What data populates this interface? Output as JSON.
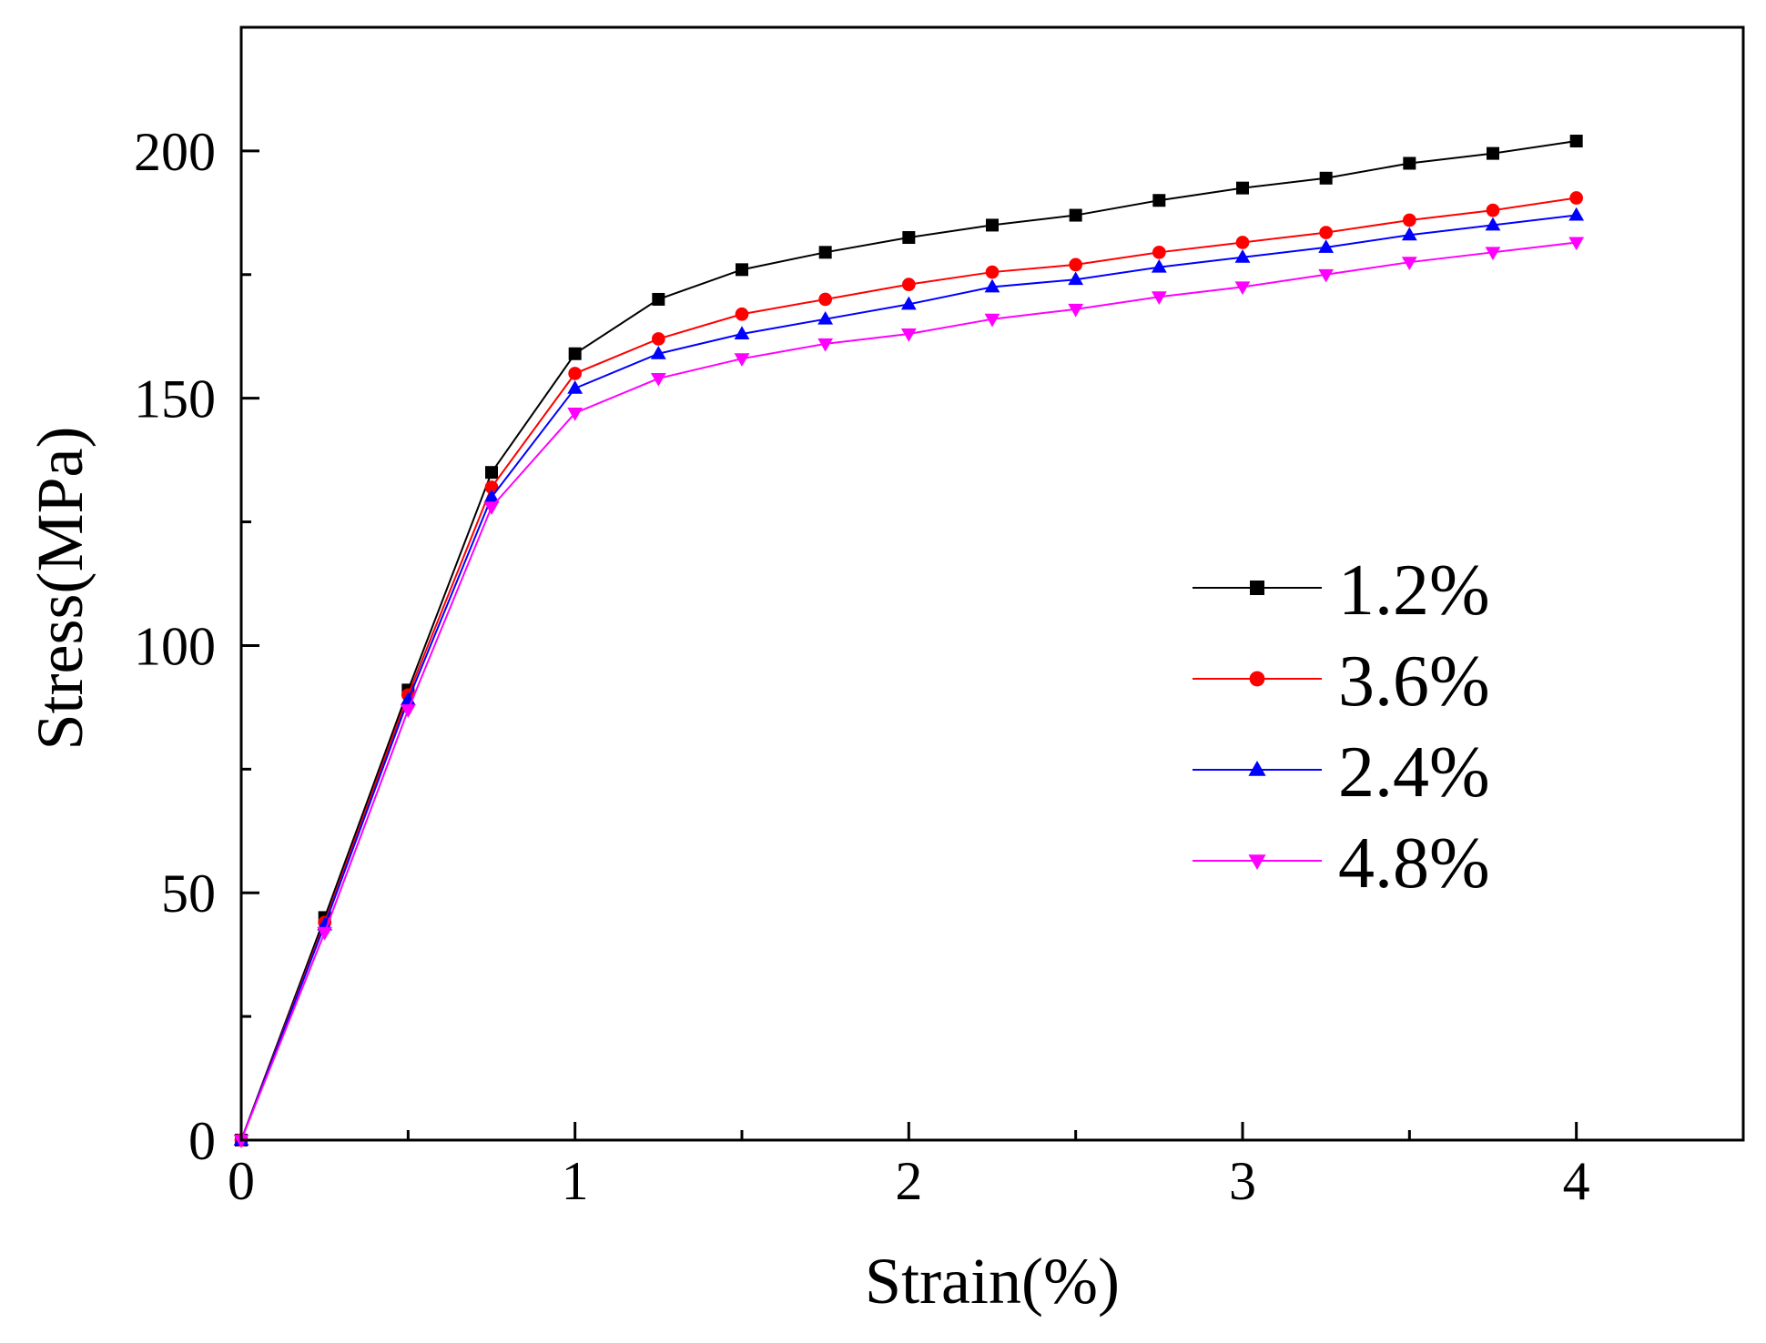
{
  "chart_data": {
    "type": "line",
    "title": "",
    "xlabel": "Strain(%)",
    "ylabel": "Stress(MPa)",
    "xlim": [
      0,
      4.5
    ],
    "ylim": [
      0,
      225
    ],
    "x_major_ticks": [
      0,
      1,
      2,
      3,
      4
    ],
    "x_minor_ticks": [
      0.5,
      1.5,
      2.5,
      3.5
    ],
    "y_major_ticks": [
      0,
      50,
      100,
      150,
      200
    ],
    "y_minor_ticks": [
      25,
      75,
      125,
      175
    ],
    "grid": false,
    "legend_position": "right-middle",
    "x": [
      0,
      0.25,
      0.5,
      0.75,
      1.0,
      1.25,
      1.5,
      1.75,
      2.0,
      2.25,
      2.5,
      2.75,
      3.0,
      3.25,
      3.5,
      3.75,
      4.0
    ],
    "series": [
      {
        "name": "1.2%",
        "color": "#000000",
        "marker": "square",
        "values": [
          0,
          45,
          91,
          135,
          159,
          170,
          176,
          179.5,
          182.5,
          185,
          187,
          190,
          192.5,
          194.5,
          197.5,
          199.5,
          202
        ]
      },
      {
        "name": "3.6%",
        "color": "#ff0000",
        "marker": "circle",
        "values": [
          0,
          44,
          90,
          132,
          155,
          162,
          167,
          170,
          173,
          175.5,
          177,
          179.5,
          181.5,
          183.5,
          186,
          188,
          190.5
        ]
      },
      {
        "name": "2.4%",
        "color": "#0000ff",
        "marker": "triangle-up",
        "values": [
          0,
          43.5,
          89,
          130,
          152,
          159,
          163,
          166,
          169,
          172.5,
          174,
          176.5,
          178.5,
          180.5,
          183,
          185,
          187
        ]
      },
      {
        "name": "4.8%",
        "color": "#ff00ff",
        "marker": "triangle-down",
        "values": [
          0,
          42,
          87,
          128,
          147,
          154,
          158,
          161,
          163,
          166,
          168,
          170.5,
          172.5,
          175,
          177.5,
          179.5,
          181.5
        ]
      }
    ]
  }
}
